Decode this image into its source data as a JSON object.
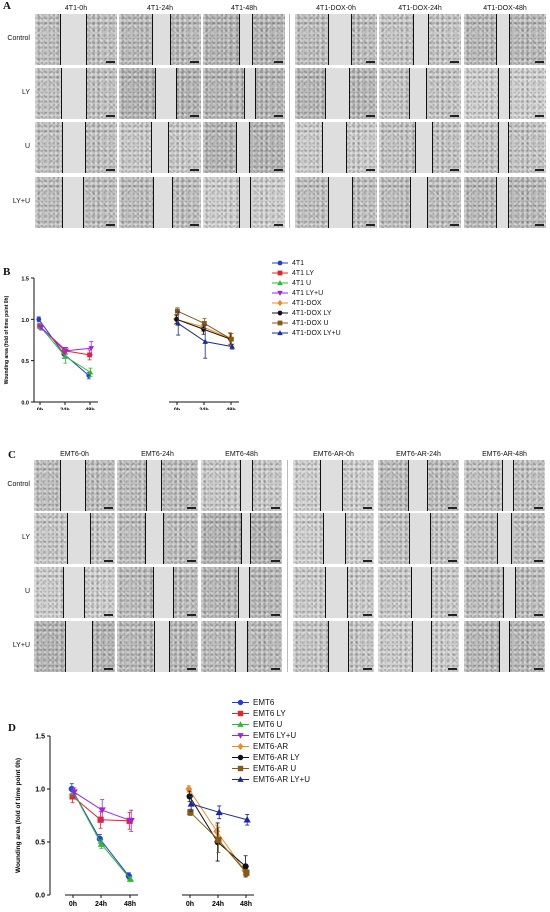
{
  "panel_a": {
    "letter": "A",
    "columns": [
      "4T1-0h",
      "4T1-24h",
      "4T1-48h",
      "4T1-DOX-0h",
      "4T1-DOX-24h",
      "4T1-DOX-48h"
    ],
    "rows": [
      "Control",
      "LY",
      "U",
      "LY+U"
    ]
  },
  "panel_c": {
    "letter": "C",
    "columns": [
      "EMT6-0h",
      "EMT6-24h",
      "EMT6-48h",
      "EMT6-AR-0h",
      "EMT6-AR-24h",
      "EMT6-AR-48h"
    ],
    "rows": [
      "Control",
      "LY",
      "U",
      "LY+U"
    ]
  },
  "chart_data": [
    {
      "type": "line",
      "panel": "B",
      "ylabel": "Wounding area (fold of time point 0h)",
      "ylim": [
        0.0,
        1.5
      ],
      "yticks": [
        "0.0",
        "0.5",
        "1.0",
        "1.5"
      ],
      "group_categories": [
        [
          "0h",
          "24h",
          "48h"
        ],
        [
          "0h",
          "24h",
          "48h"
        ]
      ],
      "series": [
        {
          "name": "4T1",
          "group": 0,
          "color": "#1f3fd6",
          "marker": "circle",
          "values": [
            1.0,
            0.58,
            0.32
          ],
          "errors": [
            0.03,
            0.05,
            0.04
          ]
        },
        {
          "name": "4T1 LY",
          "group": 0,
          "color": "#e8232a",
          "marker": "square",
          "values": [
            0.92,
            0.62,
            0.57
          ],
          "errors": [
            0.03,
            0.04,
            0.06
          ]
        },
        {
          "name": "4T1 U",
          "group": 0,
          "color": "#2dbb2d",
          "marker": "triangle",
          "values": [
            0.91,
            0.55,
            0.36
          ],
          "errors": [
            0.03,
            0.08,
            0.05
          ]
        },
        {
          "name": "4T1 LY+U",
          "group": 0,
          "color": "#a020f0",
          "marker": "triangle-down",
          "values": [
            0.9,
            0.62,
            0.65
          ],
          "errors": [
            0.03,
            0.04,
            0.08
          ]
        },
        {
          "name": "4T1-DOX",
          "group": 1,
          "color": "#f08a24",
          "marker": "diamond",
          "values": [
            1.0,
            0.91,
            0.77
          ],
          "errors": [
            0.06,
            0.06,
            0.07
          ]
        },
        {
          "name": "4T1-DOX LY",
          "group": 1,
          "color": "#111111",
          "marker": "circle",
          "values": [
            1.0,
            0.88,
            0.76
          ],
          "errors": [
            0.05,
            0.06,
            0.07
          ]
        },
        {
          "name": "4T1-DOX U",
          "group": 1,
          "color": "#8a5a14",
          "marker": "square",
          "values": [
            1.1,
            0.95,
            0.76
          ],
          "errors": [
            0.04,
            0.06,
            0.07
          ]
        },
        {
          "name": "4T1-DOX LY+U",
          "group": 1,
          "color": "#1a2a9c",
          "marker": "triangle",
          "values": [
            0.95,
            0.73,
            0.67
          ],
          "errors": [
            0.14,
            0.2,
            0.03
          ]
        }
      ]
    },
    {
      "type": "line",
      "panel": "D",
      "ylabel": "Wounding area (fold of time point 0h)",
      "ylim": [
        0.0,
        1.5
      ],
      "yticks": [
        "0.0",
        "0.5",
        "1.0",
        "1.5"
      ],
      "group_categories": [
        [
          "0h",
          "24h",
          "48h"
        ],
        [
          "0h",
          "24h",
          "48h"
        ]
      ],
      "series": [
        {
          "name": "EMT6",
          "group": 0,
          "color": "#1f3fd6",
          "marker": "circle",
          "values": [
            1.0,
            0.53,
            0.18
          ],
          "errors": [
            0.05,
            0.04,
            0.03
          ]
        },
        {
          "name": "EMT6 LY",
          "group": 0,
          "color": "#e8232a",
          "marker": "square",
          "values": [
            0.93,
            0.71,
            0.7
          ],
          "errors": [
            0.06,
            0.08,
            0.08
          ]
        },
        {
          "name": "EMT6 U",
          "group": 0,
          "color": "#2dbb2d",
          "marker": "triangle",
          "values": [
            0.97,
            0.48,
            0.15
          ],
          "errors": [
            0.04,
            0.04,
            0.02
          ]
        },
        {
          "name": "EMT6 LY+U",
          "group": 0,
          "color": "#a020f0",
          "marker": "triangle-down",
          "values": [
            0.97,
            0.8,
            0.7
          ],
          "errors": [
            0.04,
            0.1,
            0.1
          ]
        },
        {
          "name": "EMT6-AR",
          "group": 1,
          "color": "#f08a24",
          "marker": "diamond",
          "values": [
            1.0,
            0.6,
            0.23
          ],
          "errors": [
            0.03,
            0.06,
            0.04
          ]
        },
        {
          "name": "EMT6-AR LY",
          "group": 1,
          "color": "#111111",
          "marker": "circle",
          "values": [
            0.93,
            0.5,
            0.27
          ],
          "errors": [
            0.05,
            0.18,
            0.1
          ]
        },
        {
          "name": "EMT6-AR U",
          "group": 1,
          "color": "#8a5a14",
          "marker": "square",
          "values": [
            0.78,
            0.52,
            0.21
          ],
          "errors": [
            0.03,
            0.12,
            0.03
          ]
        },
        {
          "name": "EMT6-AR LY+U",
          "group": 1,
          "color": "#1a2a9c",
          "marker": "triangle",
          "values": [
            0.86,
            0.78,
            0.71
          ],
          "errors": [
            0.07,
            0.06,
            0.05
          ]
        }
      ]
    }
  ]
}
